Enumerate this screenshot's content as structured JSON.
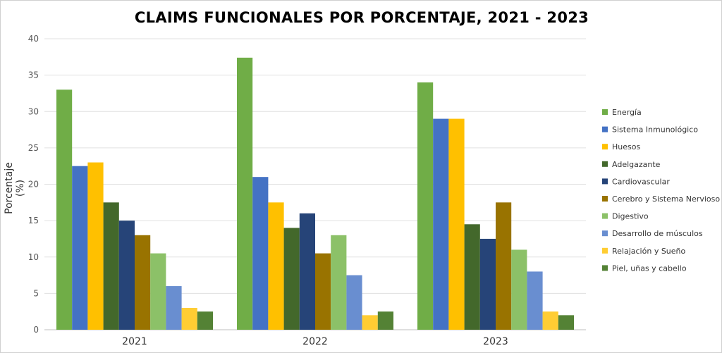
{
  "chart_data": {
    "type": "bar",
    "title": "CLAIMS FUNCIONALES POR PORCENTAJE, 2021 - 2023",
    "xlabel": "",
    "ylabel": "Porcentaje (%)",
    "ylim": [
      0,
      40
    ],
    "yticks": [
      "0",
      "5",
      "10",
      "15",
      "20",
      "25",
      "30",
      "35",
      "40"
    ],
    "grid": true,
    "legend_position": "right",
    "categories": [
      "2021",
      "2022",
      "2023"
    ],
    "series": [
      {
        "name": "Energía",
        "color": "#70ad47",
        "values": [
          33,
          37.4,
          34
        ]
      },
      {
        "name": "Sistema Inmunológico",
        "color": "#4472c4",
        "values": [
          22.5,
          21,
          29
        ]
      },
      {
        "name": "Huesos",
        "color": "#ffc000",
        "values": [
          23,
          17.5,
          29
        ]
      },
      {
        "name": "Adelgazante",
        "color": "#43682b",
        "values": [
          17.5,
          14,
          14.5
        ]
      },
      {
        "name": "Cardiovascular",
        "color": "#264478",
        "values": [
          15,
          16,
          12.5
        ]
      },
      {
        "name": "Cerebro y Sistema Nervioso",
        "color": "#997300",
        "values": [
          13,
          10.5,
          17.5
        ]
      },
      {
        "name": "Digestivo",
        "color": "#8cc168",
        "values": [
          10.5,
          13,
          11
        ]
      },
      {
        "name": "Desarrollo de músculos",
        "color": "#698ed0",
        "values": [
          6,
          7.5,
          8
        ]
      },
      {
        "name": "Relajación y Sueño",
        "color": "#ffcd33",
        "values": [
          3,
          2,
          2.5
        ]
      },
      {
        "name": "Piel, uñas y cabello",
        "color": "#548235",
        "values": [
          2.5,
          2.5,
          2
        ]
      }
    ]
  }
}
